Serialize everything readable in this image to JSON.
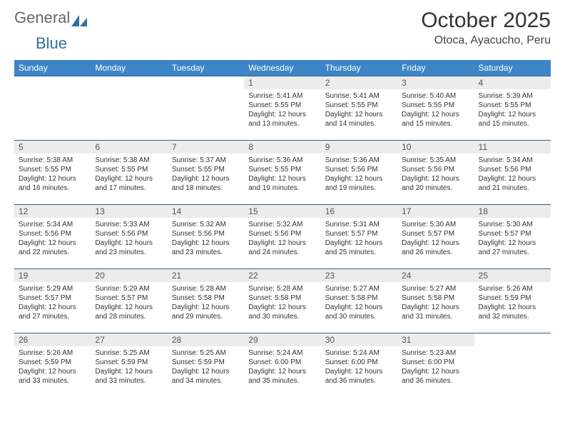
{
  "logo": {
    "text1": "General",
    "text2": "Blue"
  },
  "title": "October 2025",
  "location": "Otoca, Ayacucho, Peru",
  "colors": {
    "header_bg": "#3d85c6",
    "header_fg": "#ffffff",
    "daynum_bg": "#ececec",
    "rule": "#2f5e8f",
    "logo_blue": "#2f6fa8"
  },
  "weekdays": [
    "Sunday",
    "Monday",
    "Tuesday",
    "Wednesday",
    "Thursday",
    "Friday",
    "Saturday"
  ],
  "weeks": [
    [
      null,
      null,
      null,
      {
        "n": "1",
        "sr": "5:41 AM",
        "ss": "5:55 PM",
        "dl": "12 hours and 13 minutes."
      },
      {
        "n": "2",
        "sr": "5:41 AM",
        "ss": "5:55 PM",
        "dl": "12 hours and 14 minutes."
      },
      {
        "n": "3",
        "sr": "5:40 AM",
        "ss": "5:55 PM",
        "dl": "12 hours and 15 minutes."
      },
      {
        "n": "4",
        "sr": "5:39 AM",
        "ss": "5:55 PM",
        "dl": "12 hours and 15 minutes."
      }
    ],
    [
      {
        "n": "5",
        "sr": "5:38 AM",
        "ss": "5:55 PM",
        "dl": "12 hours and 16 minutes."
      },
      {
        "n": "6",
        "sr": "5:38 AM",
        "ss": "5:55 PM",
        "dl": "12 hours and 17 minutes."
      },
      {
        "n": "7",
        "sr": "5:37 AM",
        "ss": "5:55 PM",
        "dl": "12 hours and 18 minutes."
      },
      {
        "n": "8",
        "sr": "5:36 AM",
        "ss": "5:55 PM",
        "dl": "12 hours and 19 minutes."
      },
      {
        "n": "9",
        "sr": "5:36 AM",
        "ss": "5:56 PM",
        "dl": "12 hours and 19 minutes."
      },
      {
        "n": "10",
        "sr": "5:35 AM",
        "ss": "5:56 PM",
        "dl": "12 hours and 20 minutes."
      },
      {
        "n": "11",
        "sr": "5:34 AM",
        "ss": "5:56 PM",
        "dl": "12 hours and 21 minutes."
      }
    ],
    [
      {
        "n": "12",
        "sr": "5:34 AM",
        "ss": "5:56 PM",
        "dl": "12 hours and 22 minutes."
      },
      {
        "n": "13",
        "sr": "5:33 AM",
        "ss": "5:56 PM",
        "dl": "12 hours and 23 minutes."
      },
      {
        "n": "14",
        "sr": "5:32 AM",
        "ss": "5:56 PM",
        "dl": "12 hours and 23 minutes."
      },
      {
        "n": "15",
        "sr": "5:32 AM",
        "ss": "5:56 PM",
        "dl": "12 hours and 24 minutes."
      },
      {
        "n": "16",
        "sr": "5:31 AM",
        "ss": "5:57 PM",
        "dl": "12 hours and 25 minutes."
      },
      {
        "n": "17",
        "sr": "5:30 AM",
        "ss": "5:57 PM",
        "dl": "12 hours and 26 minutes."
      },
      {
        "n": "18",
        "sr": "5:30 AM",
        "ss": "5:57 PM",
        "dl": "12 hours and 27 minutes."
      }
    ],
    [
      {
        "n": "19",
        "sr": "5:29 AM",
        "ss": "5:57 PM",
        "dl": "12 hours and 27 minutes."
      },
      {
        "n": "20",
        "sr": "5:29 AM",
        "ss": "5:57 PM",
        "dl": "12 hours and 28 minutes."
      },
      {
        "n": "21",
        "sr": "5:28 AM",
        "ss": "5:58 PM",
        "dl": "12 hours and 29 minutes."
      },
      {
        "n": "22",
        "sr": "5:28 AM",
        "ss": "5:58 PM",
        "dl": "12 hours and 30 minutes."
      },
      {
        "n": "23",
        "sr": "5:27 AM",
        "ss": "5:58 PM",
        "dl": "12 hours and 30 minutes."
      },
      {
        "n": "24",
        "sr": "5:27 AM",
        "ss": "5:58 PM",
        "dl": "12 hours and 31 minutes."
      },
      {
        "n": "25",
        "sr": "5:26 AM",
        "ss": "5:59 PM",
        "dl": "12 hours and 32 minutes."
      }
    ],
    [
      {
        "n": "26",
        "sr": "5:26 AM",
        "ss": "5:59 PM",
        "dl": "12 hours and 33 minutes."
      },
      {
        "n": "27",
        "sr": "5:25 AM",
        "ss": "5:59 PM",
        "dl": "12 hours and 33 minutes."
      },
      {
        "n": "28",
        "sr": "5:25 AM",
        "ss": "5:59 PM",
        "dl": "12 hours and 34 minutes."
      },
      {
        "n": "29",
        "sr": "5:24 AM",
        "ss": "6:00 PM",
        "dl": "12 hours and 35 minutes."
      },
      {
        "n": "30",
        "sr": "5:24 AM",
        "ss": "6:00 PM",
        "dl": "12 hours and 36 minutes."
      },
      {
        "n": "31",
        "sr": "5:23 AM",
        "ss": "6:00 PM",
        "dl": "12 hours and 36 minutes."
      },
      null
    ]
  ],
  "labels": {
    "sunrise": "Sunrise:",
    "sunset": "Sunset:",
    "daylight": "Daylight:"
  }
}
